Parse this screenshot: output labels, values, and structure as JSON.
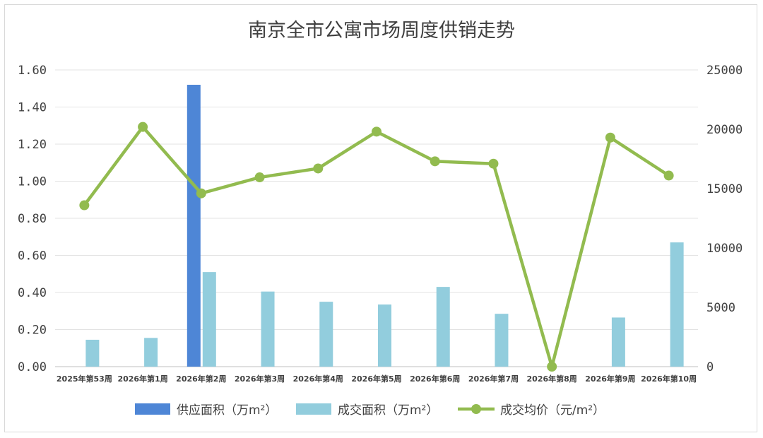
{
  "chart_data": {
    "type": "bar",
    "title": "南京全市公寓市场周度供销走势",
    "categories": [
      "2025年第53周",
      "2026年第1周",
      "2026年第2周",
      "2026年第3周",
      "2026年第4周",
      "2026年第5周",
      "2026年第6周",
      "2026年第7周",
      "2026年第8周",
      "2026年第9周",
      "2026年第10周"
    ],
    "y_left": {
      "ylim": [
        0,
        1.6
      ],
      "ticks": [
        "0.00",
        "0.20",
        "0.40",
        "0.60",
        "0.80",
        "1.00",
        "1.20",
        "1.40",
        "1.60"
      ]
    },
    "y_right": {
      "ylim": [
        0,
        25000
      ],
      "ticks": [
        "0",
        "5000",
        "10000",
        "15000",
        "20000",
        "25000"
      ]
    },
    "series": [
      {
        "name": "供应面积（万m²）",
        "type": "bar",
        "axis": "left",
        "color": "#4e86d6",
        "values": [
          0,
          0,
          1.52,
          0,
          0,
          0,
          0,
          0,
          0,
          0,
          0
        ]
      },
      {
        "name": "成交面积（万m²）",
        "type": "bar",
        "axis": "left",
        "color": "#92cddd",
        "values": [
          0.145,
          0.155,
          0.51,
          0.405,
          0.35,
          0.335,
          0.43,
          0.285,
          0,
          0.265,
          0.67
        ]
      },
      {
        "name": "成交均价（元/m²）",
        "type": "line",
        "axis": "right",
        "color": "#92bb4f",
        "values": [
          13600,
          20200,
          14600,
          15950,
          16700,
          19800,
          17300,
          17100,
          0,
          19300,
          16100
        ]
      }
    ],
    "grid": true,
    "legend_position": "bottom"
  }
}
